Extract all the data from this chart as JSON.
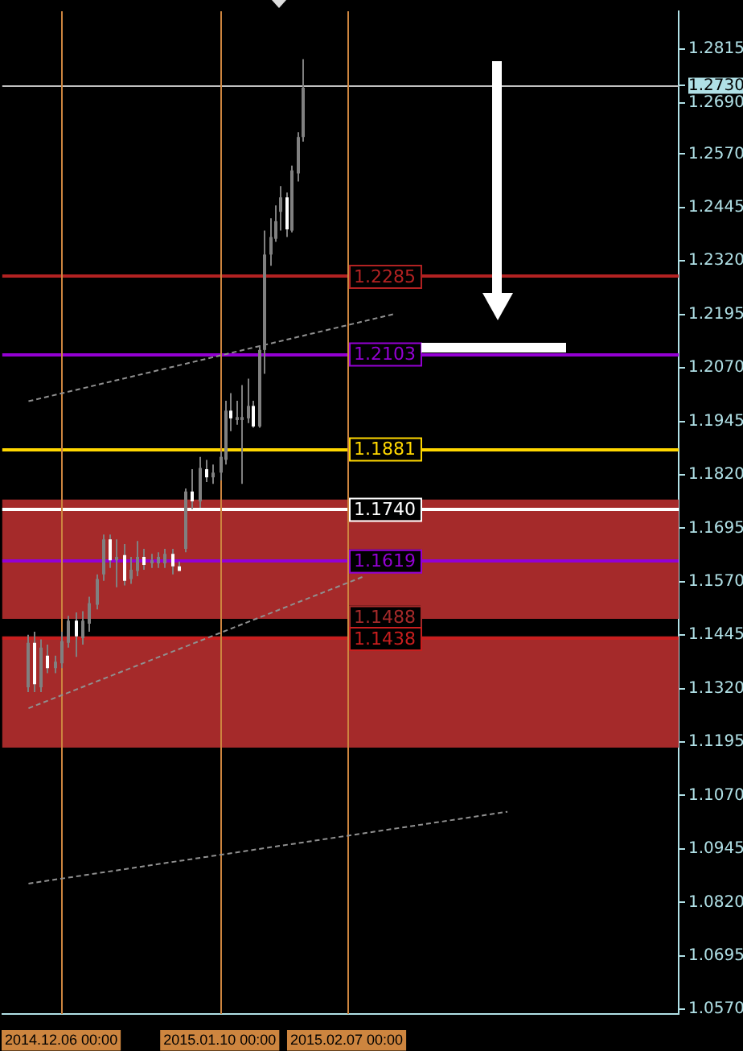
{
  "chart_data": {
    "type": "candlestick",
    "x": [
      "2014-11-28T09:00",
      "2014-11-29T22:00",
      "2014-12-01T11:00",
      "2014-12-02T23:00",
      "2014-12-04T12:00",
      "2014-12-06T00:00",
      "2014-12-07T12:00",
      "2014-12-09T01:00",
      "2014-12-10T13:00",
      "2014-12-12T02:00",
      "2014-12-13T15:00",
      "2014-12-15T03:00",
      "2014-12-16T16:00",
      "2014-12-18T04:00",
      "2014-12-19T17:00",
      "2014-12-21T05:00",
      "2014-12-22T18:00",
      "2014-12-24T06:00",
      "2014-12-25T19:00",
      "2014-12-27T07:00",
      "2014-12-28T20:00",
      "2014-12-30T08:00",
      "2014-12-31T21:00",
      "2015-01-02T09:00",
      "2015-01-03T22:00",
      "2015-01-05T10:00",
      "2015-01-06T23:00",
      "2015-01-08T12:00",
      "2015-01-10T00:00",
      "2015-01-11T05:00",
      "2015-01-12T10:00",
      "2015-01-13T16:00",
      "2015-01-14T21:00",
      "2015-01-16T02:00",
      "2015-01-17T07:00",
      "2015-01-18T12:00",
      "2015-01-19T18:00",
      "2015-01-20T23:00",
      "2015-01-22T04:00",
      "2015-01-23T09:00",
      "2015-01-24T15:00",
      "2015-01-25T20:00",
      "2015-01-27T01:00",
      "2015-01-28T06:00"
    ],
    "ohlc": [
      [
        1.1323,
        1.1446,
        1.1312,
        1.1427
      ],
      [
        1.1427,
        1.1453,
        1.1312,
        1.133
      ],
      [
        1.1323,
        1.1435,
        1.1312,
        1.1416
      ],
      [
        1.1397,
        1.1423,
        1.1356,
        1.1368
      ],
      [
        1.1368,
        1.1397,
        1.1356,
        1.1383
      ],
      [
        1.1379,
        1.1453,
        1.1368,
        1.1431
      ],
      [
        1.1427,
        1.149,
        1.1416,
        1.1479
      ],
      [
        1.1479,
        1.1498,
        1.1394,
        1.1442
      ],
      [
        1.1438,
        1.1501,
        1.1423,
        1.1479
      ],
      [
        1.1472,
        1.1535,
        1.1453,
        1.152
      ],
      [
        1.1516,
        1.1587,
        1.1505,
        1.1576
      ],
      [
        1.1587,
        1.168,
        1.1572,
        1.1669
      ],
      [
        1.1669,
        1.168,
        1.1602,
        1.162
      ],
      [
        1.162,
        1.1669,
        1.1557,
        1.1628
      ],
      [
        1.1632,
        1.1658,
        1.1561,
        1.1572
      ],
      [
        1.1576,
        1.1628,
        1.1565,
        1.1598
      ],
      [
        1.1595,
        1.1665,
        1.1583,
        1.1628
      ],
      [
        1.1628,
        1.1647,
        1.1598,
        1.1609
      ],
      [
        1.1613,
        1.1635,
        1.1602,
        1.162
      ],
      [
        1.1613,
        1.1639,
        1.1602,
        1.1628
      ],
      [
        1.1613,
        1.1647,
        1.1602,
        1.1635
      ],
      [
        1.1635,
        1.1647,
        1.1587,
        1.1606
      ],
      [
        1.1606,
        1.1617,
        1.1595,
        1.1595
      ],
      [
        1.1647,
        1.1788,
        1.1639,
        1.1781
      ],
      [
        1.1781,
        1.1833,
        1.174,
        1.1758
      ],
      [
        1.1758,
        1.1862,
        1.1743,
        1.1836
      ],
      [
        1.1833,
        1.1855,
        1.1803,
        1.1814
      ],
      [
        1.1814,
        1.1844,
        1.1799,
        1.1825
      ],
      [
        1.1825,
        1.1874,
        1.1807,
        1.1862
      ],
      [
        1.1855,
        1.1993,
        1.1844,
        1.197
      ],
      [
        1.197,
        1.2011,
        1.1922,
        1.1952
      ],
      [
        1.1948,
        1.1993,
        1.1937,
        1.1955
      ],
      [
        1.1948,
        1.203,
        1.1799,
        1.1955
      ],
      [
        1.1952,
        1.2045,
        1.1941,
        1.1981
      ],
      [
        1.1981,
        1.1993,
        1.193,
        1.1933
      ],
      [
        1.1933,
        1.2123,
        1.193,
        1.2112
      ],
      [
        1.2112,
        1.2391,
        1.2056,
        1.2335
      ],
      [
        1.2335,
        1.242,
        1.2309,
        1.2376
      ],
      [
        1.2372,
        1.245,
        1.2365,
        1.2413
      ],
      [
        1.2435,
        1.2495,
        1.2391,
        1.2469
      ],
      [
        1.2469,
        1.248,
        1.2376,
        1.2394
      ],
      [
        1.2391,
        1.2543,
        1.2387,
        1.2532
      ],
      [
        1.2525,
        1.2621,
        1.2506,
        1.261
      ],
      [
        1.261,
        1.2792,
        1.2599,
        1.2725
      ]
    ],
    "colors": [
      "#808080",
      "#ffffff",
      "#808080",
      "#ffffff",
      "#808080",
      "#808080",
      "#808080",
      "#ffffff",
      "#808080",
      "#808080",
      "#808080",
      "#808080",
      "#ffffff",
      "#808080",
      "#ffffff",
      "#808080",
      "#808080",
      "#ffffff",
      "#808080",
      "#808080",
      "#808080",
      "#ffffff",
      "#ffffff",
      "#808080",
      "#ffffff",
      "#808080",
      "#ffffff",
      "#808080",
      "#808080",
      "#808080",
      "#ffffff",
      "#808080",
      "#808080",
      "#808080",
      "#ffffff",
      "#808080",
      "#808080",
      "#808080",
      "#808080",
      "#808080",
      "#ffffff",
      "#808080",
      "#808080",
      "#808080"
    ],
    "series": [
      {
        "type": "line",
        "color": "#909090",
        "x": [
          "2014-11-28T19:00",
          "2015-02-17T21:00"
        ],
        "values": [
          1.1992,
          1.2197
        ]
      },
      {
        "type": "line",
        "color": "#909090",
        "x": [
          "2014-11-28T19:00",
          "2015-02-10T12:00"
        ],
        "values": [
          1.1274,
          1.1581
        ]
      },
      {
        "type": "line",
        "color": "#909090",
        "x": [
          "2014-11-28T19:00",
          "2015-03-14T12:00"
        ],
        "values": [
          1.0864,
          1.1032
        ]
      }
    ],
    "line_style": "dashed",
    "marker": "none",
    "xlim": [
      "2014-11-23T00:00",
      "2015-04-21T07:00"
    ],
    "xticks": [
      {
        "value": "2014-12-06",
        "label": "2014.12.06 00:00"
      },
      {
        "value": "2015-01-10",
        "label": "2015.01.10 00:00"
      },
      {
        "value": "2015-02-07",
        "label": "2015.02.07 00:00"
      }
    ],
    "ylim": [
      1.0559,
      1.2904
    ],
    "yticks": [
      {
        "value": 1.2815,
        "label": "1.2815"
      },
      {
        "value": 1.273,
        "label": "1.2730"
      },
      {
        "value": 1.269,
        "label": "1.2690"
      },
      {
        "value": 1.257,
        "label": "1.2570"
      },
      {
        "value": 1.2445,
        "label": "1.2445"
      },
      {
        "value": 1.232,
        "label": "1.2320"
      },
      {
        "value": 1.2195,
        "label": "1.2195"
      },
      {
        "value": 1.207,
        "label": "1.2070"
      },
      {
        "value": 1.1945,
        "label": "1.1945"
      },
      {
        "value": 1.182,
        "label": "1.1820"
      },
      {
        "value": 1.1695,
        "label": "1.1695"
      },
      {
        "value": 1.157,
        "label": "1.1570"
      },
      {
        "value": 1.1445,
        "label": "1.1445"
      },
      {
        "value": 1.132,
        "label": "1.1320"
      },
      {
        "value": 1.1195,
        "label": "1.1195"
      },
      {
        "value": 1.107,
        "label": "1.1070"
      },
      {
        "value": 1.0945,
        "label": "1.0945"
      },
      {
        "value": 1.082,
        "label": "1.0820"
      },
      {
        "value": 1.0695,
        "label": "1.0695"
      },
      {
        "value": 1.057,
        "label": "1.0570"
      }
    ],
    "grid": false,
    "legend": false,
    "bands": [
      {
        "axis": "y",
        "from": 1.149,
        "to": 1.1762,
        "color": "#a52a2a"
      },
      {
        "axis": "y",
        "from": 1.1182,
        "to": 1.1442,
        "color": "#a52a2a"
      }
    ],
    "ref_lines": [
      {
        "axis": "y",
        "value": 1.273,
        "color": "#c0c0c0"
      },
      {
        "axis": "y",
        "value": 1.2285,
        "label": "1.2285",
        "color": "#b22222"
      },
      {
        "axis": "y",
        "value": 1.2103,
        "label": "1.2103",
        "color": "#9400d3"
      },
      {
        "axis": "y",
        "value": 1.1881,
        "label": "1.1881",
        "color": "#ffd700"
      },
      {
        "axis": "y",
        "value": 1.174,
        "label": "1.1740",
        "color": "#ffffff"
      },
      {
        "axis": "y",
        "value": 1.1619,
        "label": "1.1619",
        "color": "#9400d3"
      },
      {
        "axis": "y",
        "value": 1.1488,
        "label": "1.1488",
        "color": "#a52a2a"
      },
      {
        "axis": "y",
        "value": 1.1438,
        "label": "1.1438",
        "color": "#c81e1e"
      },
      {
        "axis": "x",
        "value": "2014-12-06",
        "color": "#cd853f"
      },
      {
        "axis": "x",
        "value": "2015-01-10",
        "color": "#cd853f"
      },
      {
        "axis": "x",
        "value": "2015-02-07",
        "color": "#cd853f"
      }
    ]
  }
}
